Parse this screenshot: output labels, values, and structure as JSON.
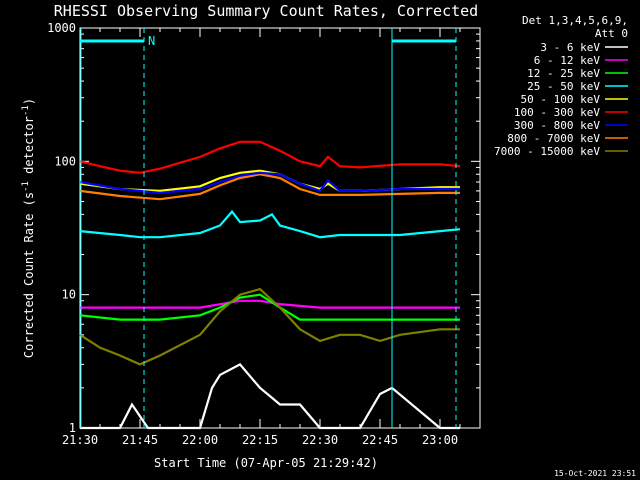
{
  "chart_data": {
    "type": "line",
    "title": "RHESSI Observing Summary Count Rates, Corrected",
    "xlabel": "Start Time (07-Apr-05 21:29:42)",
    "ylabel_main": "Corrected Count Rate (s",
    "ylabel_sup1": "-1",
    "ylabel_mid": " detector",
    "ylabel_sup2": "-1",
    "ylabel_end": ")",
    "yscale": "log",
    "ylim": [
      1,
      1000
    ],
    "xlim": [
      "21:30",
      "23:10"
    ],
    "x_ticks": [
      "21:30",
      "21:45",
      "22:00",
      "22:15",
      "22:30",
      "22:45",
      "23:00"
    ],
    "y_ticks": [
      "1",
      "10",
      "100",
      "1000"
    ],
    "legend_header": [
      "Det 1,3,4,5,6,9,",
      "Att 0"
    ],
    "legend_position": "top-right, outside plot",
    "flag_label": "N",
    "timestamp": "15-Oct-2021 23:51",
    "series": [
      {
        "name": "3 - 6 keV",
        "color": "#ffffff",
        "x": [
          "21:30",
          "21:40",
          "21:43",
          "21:47",
          "21:50",
          "22:00",
          "22:03",
          "22:05",
          "22:10",
          "22:15",
          "22:20",
          "22:25",
          "22:30",
          "22:40",
          "22:45",
          "22:48",
          "23:00",
          "23:05"
        ],
        "y": [
          1,
          1,
          1.5,
          1,
          1,
          1,
          2,
          2.5,
          3,
          2,
          1.5,
          1.5,
          1,
          1,
          1.8,
          2,
          1,
          1
        ]
      },
      {
        "name": "6 - 12 keV",
        "color": "#ff00ff",
        "x": [
          "21:30",
          "21:40",
          "21:50",
          "22:00",
          "22:10",
          "22:15",
          "22:20",
          "22:30",
          "22:40",
          "22:50",
          "23:00",
          "23:05"
        ],
        "y": [
          8,
          8,
          8,
          8,
          9,
          9,
          8.5,
          8,
          8,
          8,
          8,
          8
        ]
      },
      {
        "name": "12 - 25 keV",
        "color": "#00ff00",
        "x": [
          "21:30",
          "21:40",
          "21:50",
          "22:00",
          "22:05",
          "22:10",
          "22:15",
          "22:20",
          "22:25",
          "22:30",
          "22:40",
          "22:50",
          "23:00",
          "23:05"
        ],
        "y": [
          7,
          6.5,
          6.5,
          7,
          8,
          9.5,
          10,
          8,
          6.5,
          6.5,
          6.5,
          6.5,
          6.5,
          6.5
        ]
      },
      {
        "name": "25 - 50 keV",
        "color": "#00ffff",
        "x": [
          "21:30",
          "21:40",
          "21:45",
          "21:50",
          "22:00",
          "22:05",
          "22:08",
          "22:10",
          "22:15",
          "22:18",
          "22:20",
          "22:25",
          "22:30",
          "22:35",
          "22:40",
          "22:50",
          "23:00",
          "23:05"
        ],
        "y": [
          30,
          28,
          27,
          27,
          29,
          33,
          42,
          35,
          36,
          40,
          33,
          30,
          27,
          28,
          28,
          28,
          30,
          31
        ]
      },
      {
        "name": "50 - 100 keV",
        "color": "#ffff00",
        "x": [
          "21:30",
          "21:40",
          "21:50",
          "22:00",
          "22:05",
          "22:10",
          "22:15",
          "22:20",
          "22:25",
          "22:30",
          "22:32",
          "22:35",
          "22:40",
          "22:50",
          "23:00",
          "23:05"
        ],
        "y": [
          68,
          62,
          60,
          65,
          75,
          82,
          85,
          80,
          68,
          62,
          68,
          60,
          60,
          62,
          64,
          64
        ]
      },
      {
        "name": "100 - 300 keV",
        "color": "#ff0000",
        "x": [
          "21:30",
          "21:35",
          "21:40",
          "21:45",
          "21:50",
          "22:00",
          "22:05",
          "22:10",
          "22:15",
          "22:20",
          "22:25",
          "22:30",
          "22:32",
          "22:35",
          "22:40",
          "22:50",
          "23:00",
          "23:05"
        ],
        "y": [
          100,
          92,
          85,
          82,
          88,
          108,
          125,
          140,
          140,
          120,
          100,
          92,
          108,
          92,
          90,
          95,
          95,
          92
        ]
      },
      {
        "name": "300 - 800 keV",
        "color": "#0000ff",
        "x": [
          "21:30",
          "21:40",
          "21:50",
          "22:00",
          "22:05",
          "22:10",
          "22:15",
          "22:20",
          "22:25",
          "22:30",
          "22:32",
          "22:35",
          "22:40",
          "22:50",
          "23:00",
          "23:05"
        ],
        "y": [
          70,
          62,
          58,
          62,
          70,
          78,
          82,
          80,
          68,
          60,
          72,
          60,
          60,
          62,
          62,
          62
        ]
      },
      {
        "name": "800 - 7000 keV",
        "color": "#ff8000",
        "x": [
          "21:30",
          "21:40",
          "21:50",
          "22:00",
          "22:05",
          "22:10",
          "22:15",
          "22:20",
          "22:25",
          "22:30",
          "22:35",
          "22:40",
          "22:50",
          "23:00",
          "23:05"
        ],
        "y": [
          60,
          55,
          52,
          57,
          66,
          75,
          80,
          75,
          62,
          56,
          56,
          56,
          57,
          58,
          58
        ]
      },
      {
        "name": "7000 - 15000 keV",
        "color": "#808000",
        "x": [
          "21:30",
          "21:35",
          "21:40",
          "21:45",
          "21:50",
          "22:00",
          "22:05",
          "22:10",
          "22:15",
          "22:20",
          "22:25",
          "22:30",
          "22:35",
          "22:40",
          "22:45",
          "22:50",
          "23:00",
          "23:05"
        ],
        "y": [
          5,
          4,
          3.5,
          3,
          3.5,
          5,
          7.5,
          10,
          11,
          8,
          5.5,
          4.5,
          5,
          5,
          4.5,
          5,
          5.5,
          5.5
        ]
      }
    ]
  }
}
